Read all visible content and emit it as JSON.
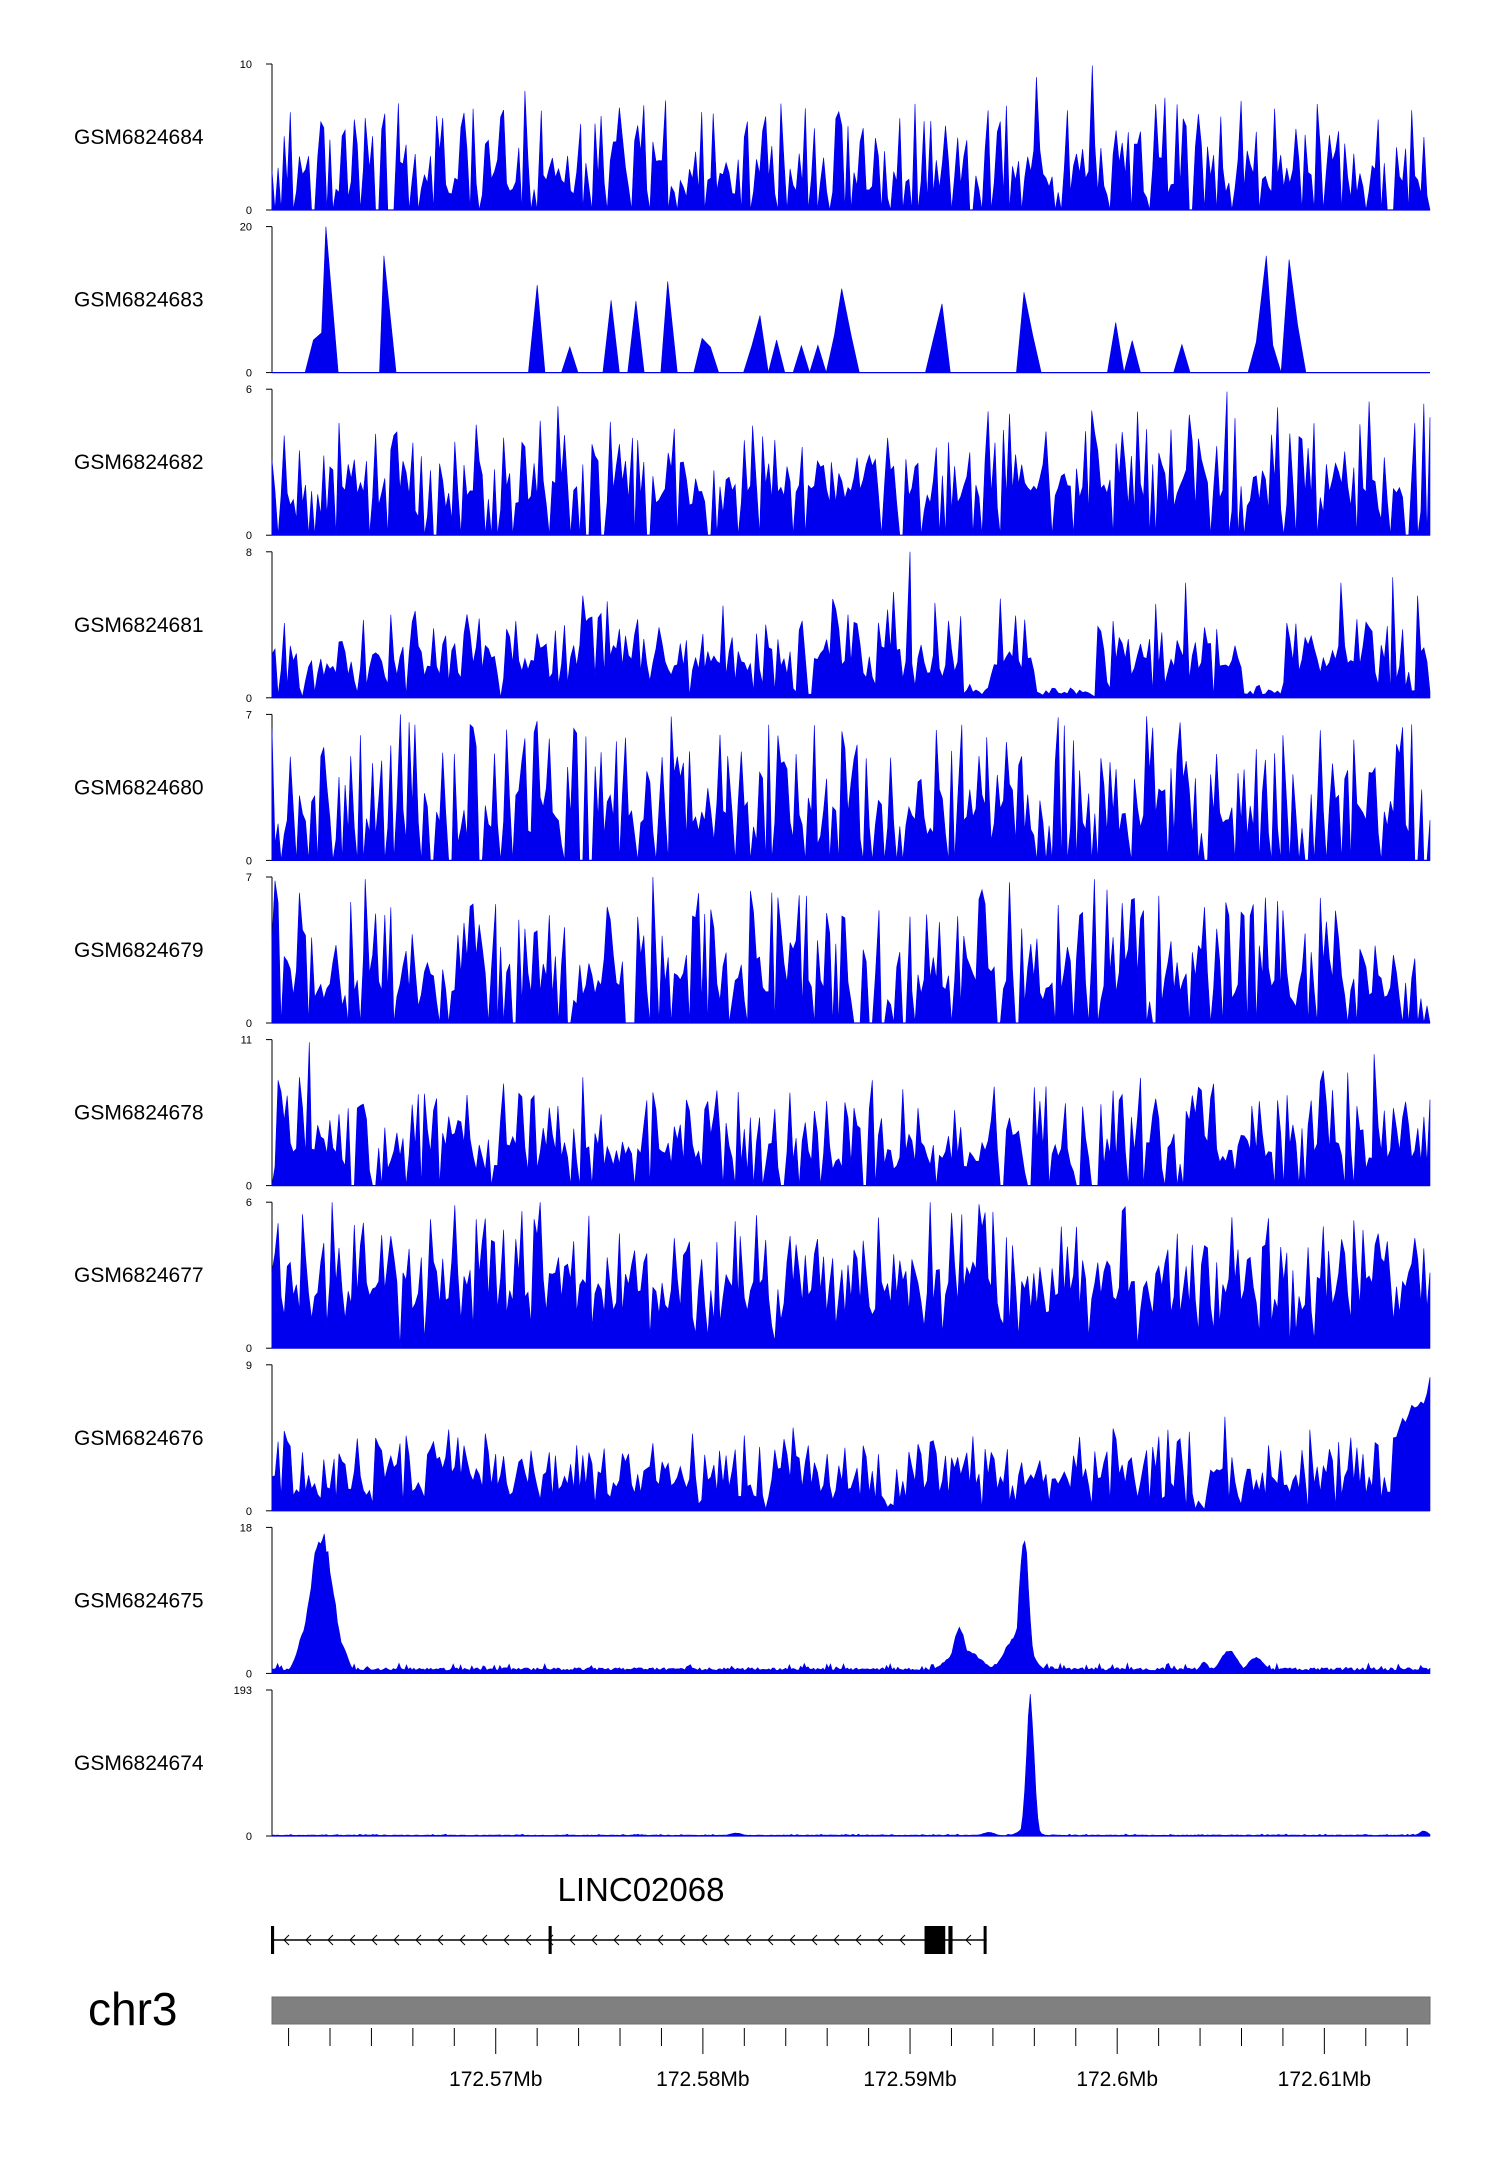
{
  "chart_data": {
    "type": "area",
    "chromosome": "chr3",
    "xlim": [
      172.5592,
      172.6151
    ],
    "x_ticks": [
      {
        "value": 172.57,
        "label": "172.57Mb"
      },
      {
        "value": 172.58,
        "label": "172.58Mb"
      },
      {
        "value": 172.59,
        "label": "172.59Mb"
      },
      {
        "value": 172.6,
        "label": "172.6Mb"
      },
      {
        "value": 172.61,
        "label": "172.61Mb"
      }
    ],
    "minor_tick_step": 0.002,
    "track_color": "#0000ee",
    "tracks": [
      {
        "label": "GSM6824684",
        "ylim": [
          0,
          10
        ],
        "ymax_label": "10",
        "ymin_label": "0",
        "style": "spiky",
        "base": 1.8,
        "spread": 2.6,
        "gap": 0.18,
        "peaks": [
          [
            172.5637,
            6.3
          ],
          [
            172.5653,
            7.3
          ],
          [
            172.5722,
            6.8
          ],
          [
            172.5741,
            5.9
          ],
          [
            172.5782,
            7.5
          ],
          [
            172.5805,
            6.6
          ],
          [
            172.591,
            6.1
          ],
          [
            172.5961,
            9.1
          ],
          [
            172.5988,
            9.9
          ],
          [
            172.605,
            6.4
          ],
          [
            172.6126,
            6.2
          ]
        ]
      },
      {
        "label": "GSM6824683",
        "ylim": [
          0,
          20
        ],
        "ymax_label": "20",
        "ymin_label": "0",
        "style": "sparse",
        "base": 3.5,
        "spread": 4.0,
        "gap": 0.75,
        "peaks": [
          [
            172.5618,
            20
          ],
          [
            172.5646,
            16
          ],
          [
            172.572,
            12
          ],
          [
            172.5783,
            12.5
          ],
          [
            172.5867,
            11.5
          ],
          [
            172.5955,
            11
          ],
          [
            172.6072,
            16
          ],
          [
            172.6083,
            15.5
          ]
        ]
      },
      {
        "label": "GSM6824682",
        "ylim": [
          0,
          6
        ],
        "ymax_label": "6",
        "ymin_label": "0",
        "style": "spiky",
        "base": 1.5,
        "spread": 1.6,
        "gap": 0.12,
        "peaks": [
          [
            172.566,
            3.8
          ],
          [
            172.573,
            5.3
          ],
          [
            172.5766,
            4.0
          ],
          [
            172.5824,
            4.5
          ],
          [
            172.5862,
            3.0
          ],
          [
            172.5941,
            3.8
          ],
          [
            172.6053,
            5.9
          ],
          [
            172.6095,
            4.6
          ],
          [
            172.6148,
            5.4
          ]
        ]
      },
      {
        "label": "GSM6824681",
        "ylim": [
          0,
          8
        ],
        "ymax_label": "8",
        "ymin_label": "0",
        "style": "dense",
        "base": 1.6,
        "spread": 1.6,
        "gap": 0.08,
        "peaks": [
          [
            172.5598,
            4.1
          ],
          [
            172.567,
            3.8
          ],
          [
            172.58,
            3.5
          ],
          [
            172.5892,
            5.8
          ],
          [
            172.59,
            8.0
          ],
          [
            172.5912,
            5.2
          ],
          [
            172.6033,
            6.3
          ],
          [
            172.6108,
            6.3
          ],
          [
            172.6133,
            6.6
          ],
          [
            172.6145,
            5.6
          ]
        ],
        "lows": [
          [
            172.5925,
            172.5938
          ],
          [
            172.596,
            172.599
          ],
          [
            172.606,
            172.608
          ]
        ]
      },
      {
        "label": "GSM6824680",
        "ylim": [
          0,
          7
        ],
        "ymax_label": "7",
        "ymin_label": "0",
        "style": "spiky",
        "base": 1.7,
        "spread": 2.3,
        "gap": 0.22,
        "peaks": [
          [
            172.563,
            5.0
          ],
          [
            172.5654,
            7.0
          ],
          [
            172.5661,
            6.5
          ],
          [
            172.568,
            5.1
          ],
          [
            172.5748,
            4.5
          ],
          [
            172.5812,
            5.0
          ],
          [
            172.5925,
            6.5
          ],
          [
            172.5937,
            5.9
          ],
          [
            172.6048,
            5.1
          ],
          [
            172.608,
            6.0
          ],
          [
            172.6147,
            3.4
          ]
        ]
      },
      {
        "label": "GSM6824679",
        "ylim": [
          0,
          7
        ],
        "ymax_label": "7",
        "ymin_label": "0",
        "style": "spiky",
        "base": 1.7,
        "spread": 2.3,
        "gap": 0.15,
        "peaks": [
          [
            172.563,
            5.8
          ],
          [
            172.5637,
            6.9
          ],
          [
            172.57,
            5.7
          ],
          [
            172.585,
            6.1
          ],
          [
            172.5885,
            5.4
          ],
          [
            172.59,
            5.1
          ],
          [
            172.5908,
            5.2
          ],
          [
            172.5989,
            6.9
          ],
          [
            172.608,
            5.4
          ]
        ]
      },
      {
        "label": "GSM6824678",
        "ylim": [
          0,
          11
        ],
        "ymax_label": "11",
        "ymin_label": "0",
        "style": "spiky",
        "base": 2.3,
        "spread": 2.6,
        "gap": 0.14,
        "peaks": [
          [
            172.561,
            10.8
          ],
          [
            172.573,
            6.0
          ],
          [
            172.5842,
            7.0
          ],
          [
            172.596,
            7.4
          ],
          [
            172.5975,
            6.2
          ],
          [
            172.6065,
            6.0
          ],
          [
            172.6082,
            6.8
          ],
          [
            172.6124,
            9.9
          ]
        ]
      },
      {
        "label": "GSM6824677",
        "ylim": [
          0,
          6
        ],
        "ymax_label": "6",
        "ymin_label": "0",
        "style": "dense",
        "base": 2.0,
        "spread": 1.6,
        "gap": 0.04,
        "peaks": [
          [
            172.5621,
            6.0
          ],
          [
            172.5818,
            4.6
          ],
          [
            172.5925,
            5.5
          ],
          [
            172.594,
            5.6
          ],
          [
            172.5973,
            5.0
          ],
          [
            172.6029,
            4.7
          ],
          [
            172.6102,
            4.0
          ],
          [
            172.6148,
            4.1
          ]
        ]
      },
      {
        "label": "GSM6824676",
        "ylim": [
          0,
          9
        ],
        "ymax_label": "9",
        "ymin_label": "0",
        "style": "dense",
        "base": 1.5,
        "spread": 1.5,
        "gap": 0.08,
        "peaks": [
          [
            172.5622,
            3.2
          ],
          [
            172.57,
            3.5
          ],
          [
            172.5808,
            3.7
          ],
          [
            172.586,
            3.5
          ],
          [
            172.5947,
            3.8
          ],
          [
            172.6052,
            5.8
          ],
          [
            172.6093,
            5.0
          ]
        ],
        "lows": [
          [
            172.5887,
            172.5893
          ]
        ],
        "ramp": [
          172.6132,
          172.6151,
          8.5
        ]
      },
      {
        "label": "GSM6824675",
        "ylim": [
          0,
          18
        ],
        "ymax_label": "18",
        "ymin_label": "0",
        "style": "baseline",
        "base": 0.35,
        "spread": 0.9,
        "gap": 0.0,
        "bumps": [
          [
            172.5616,
            0.00055,
            17.8
          ],
          [
            172.5609,
            0.0004,
            6.0
          ],
          [
            172.5625,
            0.0003,
            4.0
          ],
          [
            172.5924,
            0.0003,
            5.8
          ],
          [
            172.5926,
            0.0008,
            3.0
          ],
          [
            172.5955,
            0.00022,
            17.8
          ],
          [
            172.5952,
            0.0006,
            5.0
          ],
          [
            172.6054,
            0.0004,
            3.0
          ],
          [
            172.6067,
            0.0004,
            2.0
          ],
          [
            172.6042,
            0.0002,
            1.5
          ]
        ]
      },
      {
        "label": "GSM6824674",
        "ylim": [
          0,
          193
        ],
        "ymax_label": "193",
        "ymin_label": "0",
        "style": "baseline",
        "base": 0.7,
        "spread": 1.8,
        "gap": 0.0,
        "bumps": [
          [
            172.5958,
            0.00018,
            190
          ],
          [
            172.5957,
            0.0004,
            12
          ],
          [
            172.5938,
            0.0003,
            5
          ],
          [
            172.5816,
            0.0003,
            4
          ],
          [
            172.6148,
            0.0002,
            7
          ]
        ]
      }
    ],
    "gene": {
      "name": "LINC02068",
      "strand": "-",
      "start": 172.5592,
      "end": 172.5937,
      "exons": [
        {
          "start": 172.5592,
          "end": 172.55935,
          "kind": "thin"
        },
        {
          "start": 172.5726,
          "end": 172.57275,
          "kind": "thin"
        },
        {
          "start": 172.5907,
          "end": 172.5917,
          "kind": "thick"
        },
        {
          "start": 172.5919,
          "end": 172.5921,
          "kind": "thin"
        },
        {
          "start": 172.5936,
          "end": 172.5937,
          "kind": "thin"
        }
      ]
    }
  }
}
